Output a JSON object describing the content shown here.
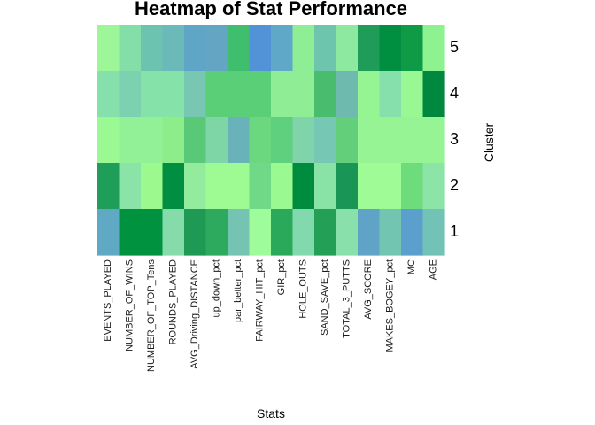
{
  "chart_data": {
    "type": "heatmap",
    "title": "Heatmap of Stat Performance",
    "xlabel": "Stats",
    "ylabel": "Cluster",
    "x_categories": [
      "EVENTS_PLAYED",
      "NUMBER_OF_WINS",
      "NUMBER_OF_TOP_Tens",
      "ROUNDS_PLAYED",
      "AVG_Driving_DISTANCE",
      "up_down_pct",
      "par_better_pct",
      "FAIRWAY_HIT_pct",
      "GIR_pct",
      "HOLE_OUTS",
      "SAND_SAVE_pct",
      "TOTAL_3_PUTTS",
      "AVG_SCORE",
      "MAKES_BOGEY_pct",
      "MC",
      "AGE"
    ],
    "y_categories": [
      "5",
      "4",
      "3",
      "2",
      "1"
    ],
    "cell_colors": [
      [
        "#9df798",
        "#84dea7",
        "#6cc3b0",
        "#6bb9b9",
        "#5fa6c6",
        "#64a5c4",
        "#3fbf6d",
        "#5292d6",
        "#5fa8c8",
        "#8eee96",
        "#6dc5ad",
        "#8de8a0",
        "#1f9c58",
        "#008f40",
        "#0f9a45",
        "#8ef291"
      ],
      [
        "#86e0ac",
        "#7cd2b0",
        "#85e2a8",
        "#85e2a8",
        "#78c7b2",
        "#5bce78",
        "#5bce78",
        "#5bce78",
        "#8fee95",
        "#8fee95",
        "#49bd6d",
        "#6fbaaf",
        "#95f592",
        "#86e0ac",
        "#99f893",
        "#00883e"
      ],
      [
        "#9af992",
        "#92f197",
        "#92f197",
        "#8eed8b",
        "#59c977",
        "#7ed5a6",
        "#69b2ba",
        "#6bd87f",
        "#5fd07d",
        "#7fd4aa",
        "#76c7b3",
        "#63cf7a",
        "#97f495",
        "#97f495",
        "#97f495",
        "#97f495"
      ],
      [
        "#1f9e59",
        "#8ae3a7",
        "#9bf98d",
        "#008f40",
        "#93ec9e",
        "#9efb93",
        "#9efb93",
        "#6fd987",
        "#9af990",
        "#008c3f",
        "#89e3a6",
        "#199655",
        "#9ffb95",
        "#9ffb95",
        "#6ddc7b",
        "#8ce4a6"
      ],
      [
        "#5fa9c5",
        "#00923f",
        "#00923f",
        "#85dbaa",
        "#1f9a55",
        "#2daa5d",
        "#75c3b1",
        "#9ffc9a",
        "#2ba95b",
        "#82d9ad",
        "#239f56",
        "#89e0aa",
        "#5fa4c7",
        "#72c6b1",
        "#5b9fcc",
        "#73c2b6"
      ]
    ]
  }
}
